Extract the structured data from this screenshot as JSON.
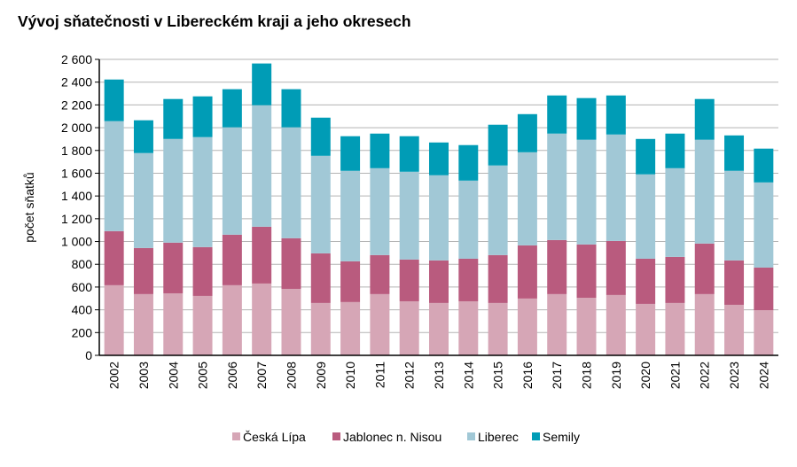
{
  "chart_data": {
    "type": "bar",
    "stacked": true,
    "title": "Vývoj sňatečnosti v Libereckém kraji a jeho okresech",
    "xlabel": "",
    "ylabel": "počet sňatků",
    "ylim": [
      0,
      2600
    ],
    "yticks": [
      "0",
      "200",
      "400",
      "600",
      "800",
      "1 000",
      "1 200",
      "1 400",
      "1 600",
      "1 800",
      "2 000",
      "2 200",
      "2 400",
      "2 600"
    ],
    "grid": true,
    "legend_position": "bottom",
    "categories": [
      "2002",
      "2003",
      "2004",
      "2005",
      "2006",
      "2007",
      "2008",
      "2009",
      "2010",
      "2011",
      "2012",
      "2013",
      "2014",
      "2015",
      "2016",
      "2017",
      "2018",
      "2019",
      "2020",
      "2021",
      "2022",
      "2023",
      "2024"
    ],
    "series": [
      {
        "name": "Česká Lípa",
        "color": "#d6a6b6",
        "values": [
          616,
          538,
          545,
          522,
          616,
          631,
          584,
          460,
          468,
          538,
          475,
          460,
          475,
          460,
          499,
          538,
          506,
          530,
          452,
          460,
          538,
          444,
          397
        ]
      },
      {
        "name": "Jablonec n. Nisou",
        "color": "#b95b7e",
        "values": [
          475,
          405,
          445,
          429,
          444,
          499,
          445,
          436,
          358,
          343,
          367,
          374,
          374,
          421,
          467,
          475,
          468,
          475,
          397,
          405,
          444,
          390,
          374
        ]
      },
      {
        "name": "Liberec",
        "color": "#a1c8d6",
        "values": [
          966,
          834,
          911,
          966,
          943,
          1067,
          974,
          857,
          795,
          763,
          771,
          748,
          686,
          787,
          818,
          935,
          920,
          935,
          741,
          779,
          912,
          787,
          748
        ]
      },
      {
        "name": "Semily",
        "color": "#009cb6",
        "values": [
          366,
          288,
          351,
          358,
          335,
          367,
          335,
          335,
          304,
          304,
          312,
          288,
          312,
          358,
          335,
          335,
          366,
          343,
          311,
          304,
          358,
          311,
          297
        ]
      }
    ]
  }
}
